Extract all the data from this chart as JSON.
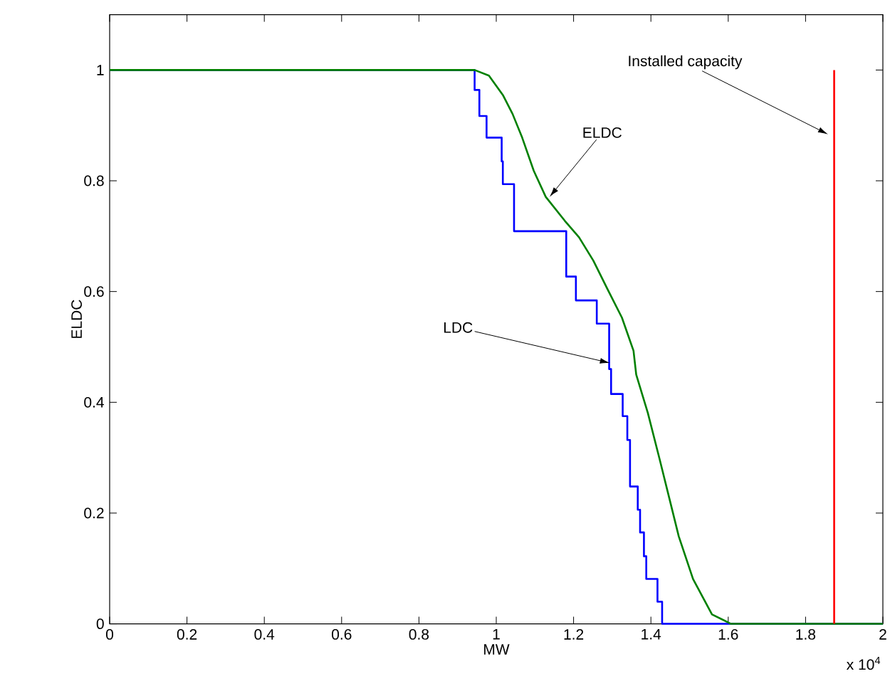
{
  "chart_data": {
    "type": "line",
    "xlabel": "MW",
    "ylabel": "ELDC",
    "xlim": [
      0,
      2
    ],
    "ylim": [
      0,
      1.1
    ],
    "xticks": [
      0,
      0.2,
      0.4,
      0.6,
      0.8,
      1,
      1.2,
      1.4,
      1.6,
      1.8,
      2
    ],
    "yticks": [
      0,
      0.2,
      0.4,
      0.6,
      0.8,
      1
    ],
    "series": [
      {
        "type": "step",
        "color": "#0000ff",
        "x": [
          0,
          0.944,
          0.9563,
          0.9749,
          1.014,
          1.017,
          1.046,
          1.181,
          1.206,
          1.26,
          1.292,
          1.297,
          1.327,
          1.339,
          1.346,
          1.366,
          1.372,
          1.382,
          1.388,
          1.417,
          1.429,
          2
        ],
        "values": [
          1,
          0.964,
          0.917,
          0.878,
          0.835,
          0.794,
          0.709,
          0.627,
          0.584,
          0.542,
          0.46,
          0.415,
          0.375,
          0.332,
          0.248,
          0.206,
          0.165,
          0.122,
          0.081,
          0.04,
          0,
          0
        ]
      },
      {
        "color": "#008000",
        "x": [
          0,
          0.944,
          0.981,
          1.017,
          1.042,
          1.067,
          1.097,
          1.128,
          1.177,
          1.214,
          1.251,
          1.288,
          1.325,
          1.355,
          1.362,
          1.392,
          1.423,
          1.4475,
          1.472,
          1.509,
          1.558,
          1.607,
          2
        ],
        "values": [
          1,
          1,
          0.99,
          0.955,
          0.921,
          0.878,
          0.818,
          0.771,
          0.728,
          0.698,
          0.656,
          0.604,
          0.553,
          0.493,
          0.45,
          0.381,
          0.296,
          0.227,
          0.158,
          0.081,
          0.017,
          0,
          0
        ]
      },
      {
        "color": "#ff0000",
        "x": [
          1.874,
          1.874
        ],
        "values": [
          0,
          1
        ]
      }
    ],
    "annotations": [
      {
        "text": "Installed capacity",
        "x": 1.858,
        "y": 0.884
      },
      {
        "text": "ELDC",
        "x": 1.138,
        "y": 0.771
      },
      {
        "text": "LDC",
        "x": 1.294,
        "y": 0.471
      },
      "x 10$^{4}$"
    ]
  }
}
